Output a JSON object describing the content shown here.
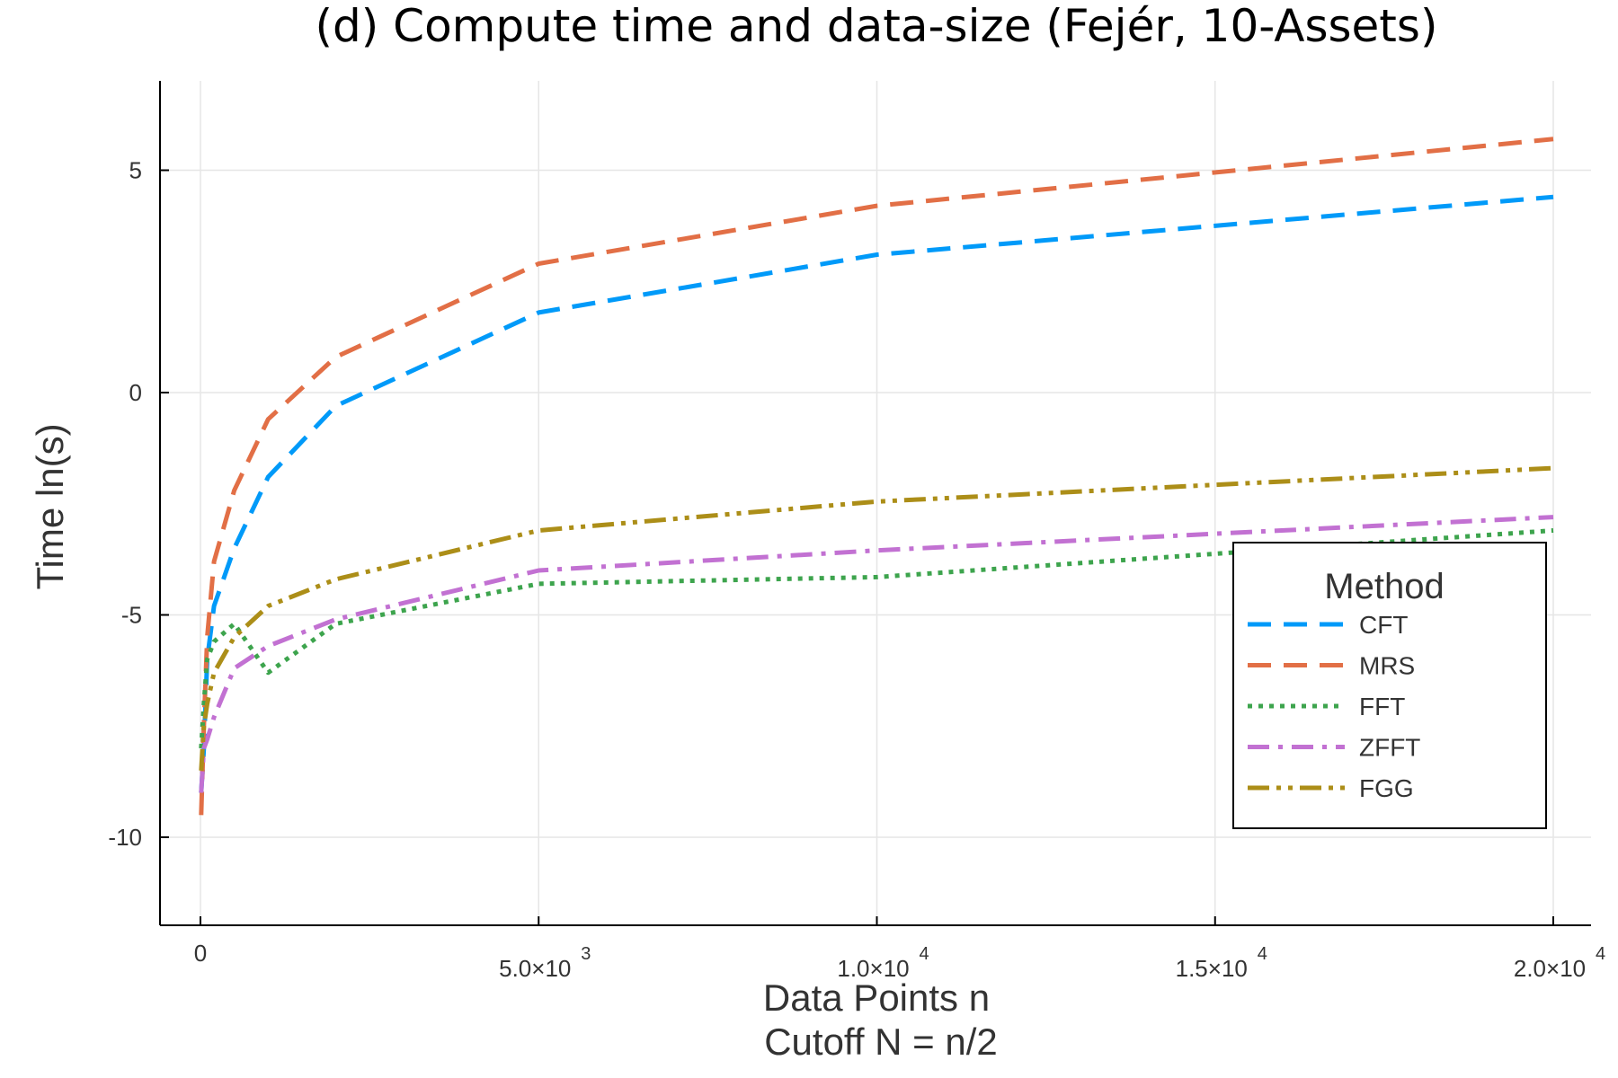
{
  "chart_data": {
    "type": "line",
    "title": "(d) Compute time and data-size (Fejér, 10-Assets)",
    "xlabel": "Data Points n",
    "xlabel2": "Cutoff N = n/2",
    "ylabel": "Time ln(s)",
    "xlim": [
      -1500,
      20600
    ],
    "ylim": [
      -12,
      7
    ],
    "x_ticks": [
      {
        "value": 0,
        "mantissa": "0",
        "exponent": ""
      },
      {
        "value": 5000,
        "mantissa": "5.0×10",
        "exponent": "3"
      },
      {
        "value": 10000,
        "mantissa": "1.0×10",
        "exponent": "4"
      },
      {
        "value": 15000,
        "mantissa": "1.5×10",
        "exponent": "4"
      },
      {
        "value": 20000,
        "mantissa": "2.0×10",
        "exponent": "4"
      }
    ],
    "y_ticks": [
      {
        "value": 5,
        "label": "5"
      },
      {
        "value": 0,
        "label": "0"
      },
      {
        "value": -5,
        "label": "-5"
      },
      {
        "value": -10,
        "label": "-10"
      }
    ],
    "grid": true,
    "legend": {
      "title": "Method",
      "position": "bottom-right"
    },
    "series": [
      {
        "name": "CFT",
        "color": "#009af9",
        "style": "dash",
        "points": [
          [
            10,
            -9.0
          ],
          [
            50,
            -8.0
          ],
          [
            100,
            -6.0
          ],
          [
            200,
            -4.8
          ],
          [
            500,
            -3.5
          ],
          [
            1000,
            -1.9
          ],
          [
            2000,
            -0.3
          ],
          [
            5000,
            1.8
          ],
          [
            10000,
            3.1
          ],
          [
            20000,
            4.4
          ]
        ]
      },
      {
        "name": "MRS",
        "color": "#e26f46",
        "style": "dash",
        "points": [
          [
            10,
            -9.5
          ],
          [
            50,
            -7.5
          ],
          [
            100,
            -5.5
          ],
          [
            200,
            -3.8
          ],
          [
            500,
            -2.2
          ],
          [
            1000,
            -0.6
          ],
          [
            2000,
            0.8
          ],
          [
            5000,
            2.9
          ],
          [
            10000,
            4.2
          ],
          [
            20000,
            5.7
          ]
        ]
      },
      {
        "name": "FFT",
        "color": "#3da44d",
        "style": "dot",
        "points": [
          [
            10,
            -8.0
          ],
          [
            50,
            -7.0
          ],
          [
            100,
            -6.0
          ],
          [
            200,
            -5.6
          ],
          [
            500,
            -5.2
          ],
          [
            1000,
            -6.3
          ],
          [
            2000,
            -5.2
          ],
          [
            5000,
            -4.3
          ],
          [
            10000,
            -4.15
          ],
          [
            20000,
            -3.1
          ]
        ]
      },
      {
        "name": "ZFFT",
        "color": "#c271d2",
        "style": "dashdot",
        "points": [
          [
            10,
            -9.0
          ],
          [
            50,
            -8.0
          ],
          [
            100,
            -7.8
          ],
          [
            200,
            -7.3
          ],
          [
            500,
            -6.2
          ],
          [
            1000,
            -5.7
          ],
          [
            2000,
            -5.1
          ],
          [
            5000,
            -4.0
          ],
          [
            10000,
            -3.55
          ],
          [
            20000,
            -2.8
          ]
        ]
      },
      {
        "name": "FGG",
        "color": "#ac8e18",
        "style": "dashdotdot",
        "points": [
          [
            10,
            -8.5
          ],
          [
            50,
            -7.5
          ],
          [
            100,
            -7.0
          ],
          [
            200,
            -6.3
          ],
          [
            500,
            -5.5
          ],
          [
            1000,
            -4.8
          ],
          [
            2000,
            -4.2
          ],
          [
            5000,
            -3.1
          ],
          [
            10000,
            -2.45
          ],
          [
            20000,
            -1.7
          ]
        ]
      }
    ]
  }
}
